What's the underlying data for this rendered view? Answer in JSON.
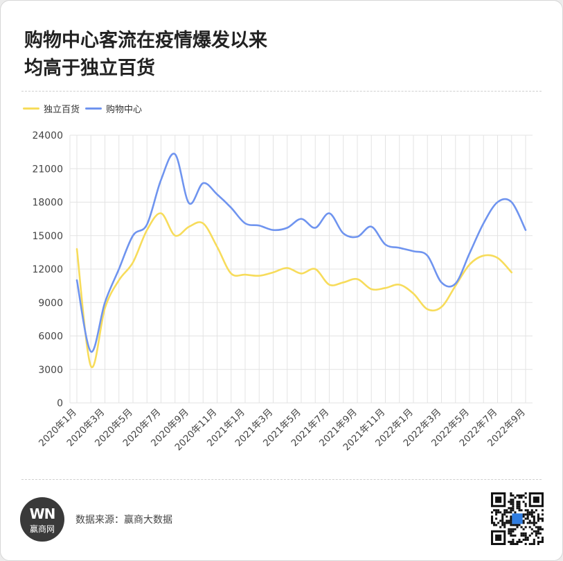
{
  "header": {
    "title_line1": "购物中心客流在疫情爆发以来",
    "title_line2": "均高于独立百货"
  },
  "footer": {
    "source": "数据来源：赢商大数据",
    "logo_mark": "WN",
    "logo_text": "赢商网"
  },
  "colors": {
    "independent": "#f7dc5b",
    "mall": "#6f94ef",
    "grid": "#e3e3e3",
    "axis": "#555555"
  },
  "chart_data": {
    "type": "line",
    "title": "购物中心客流在疫情爆发以来均高于独立百货",
    "legend_position": "top-left",
    "grid": true,
    "ylim": [
      0,
      24000
    ],
    "yticks": [
      0,
      3000,
      6000,
      9000,
      12000,
      15000,
      18000,
      21000,
      24000
    ],
    "x": [
      "2020年1月",
      "2020年2月",
      "2020年3月",
      "2020年4月",
      "2020年5月",
      "2020年6月",
      "2020年7月",
      "2020年8月",
      "2020年9月",
      "2020年10月",
      "2020年11月",
      "2020年12月",
      "2021年1月",
      "2021年2月",
      "2021年3月",
      "2021年4月",
      "2021年5月",
      "2021年6月",
      "2021年7月",
      "2021年8月",
      "2021年9月",
      "2021年10月",
      "2021年11月",
      "2021年12月",
      "2022年1月",
      "2022年2月",
      "2022年3月",
      "2022年4月",
      "2022年5月",
      "2022年6月",
      "2022年7月",
      "2022年8月",
      "2022年9月"
    ],
    "xtick_labels": [
      "2020年1月",
      "2020年3月",
      "2020年5月",
      "2020年7月",
      "2020年9月",
      "2020年11月",
      "2021年1月",
      "2021年3月",
      "2021年5月",
      "2021年7月",
      "2021年9月",
      "2021年11月",
      "2022年1月",
      "2022年3月",
      "2022年5月",
      "2022年7月",
      "2022年9月"
    ],
    "series": [
      {
        "name": "独立百货",
        "color": "#f7dc5b",
        "values": [
          13800,
          3300,
          8500,
          11000,
          12600,
          15500,
          17000,
          15000,
          15800,
          16100,
          14000,
          11600,
          11500,
          11400,
          11700,
          12100,
          11600,
          12000,
          10600,
          10800,
          11100,
          10200,
          10300,
          10600,
          9800,
          8400,
          8600,
          10500,
          12400,
          13200,
          13000,
          11700,
          null
        ]
      },
      {
        "name": "购物中心",
        "color": "#6f94ef",
        "values": [
          11000,
          4600,
          9000,
          12000,
          15000,
          16000,
          20000,
          22300,
          17900,
          19700,
          18700,
          17500,
          16100,
          15900,
          15500,
          15700,
          16500,
          15700,
          17000,
          15200,
          14900,
          15800,
          14200,
          13900,
          13600,
          13200,
          10800,
          10700,
          13400,
          16100,
          18000,
          18000,
          15500
        ]
      }
    ]
  }
}
